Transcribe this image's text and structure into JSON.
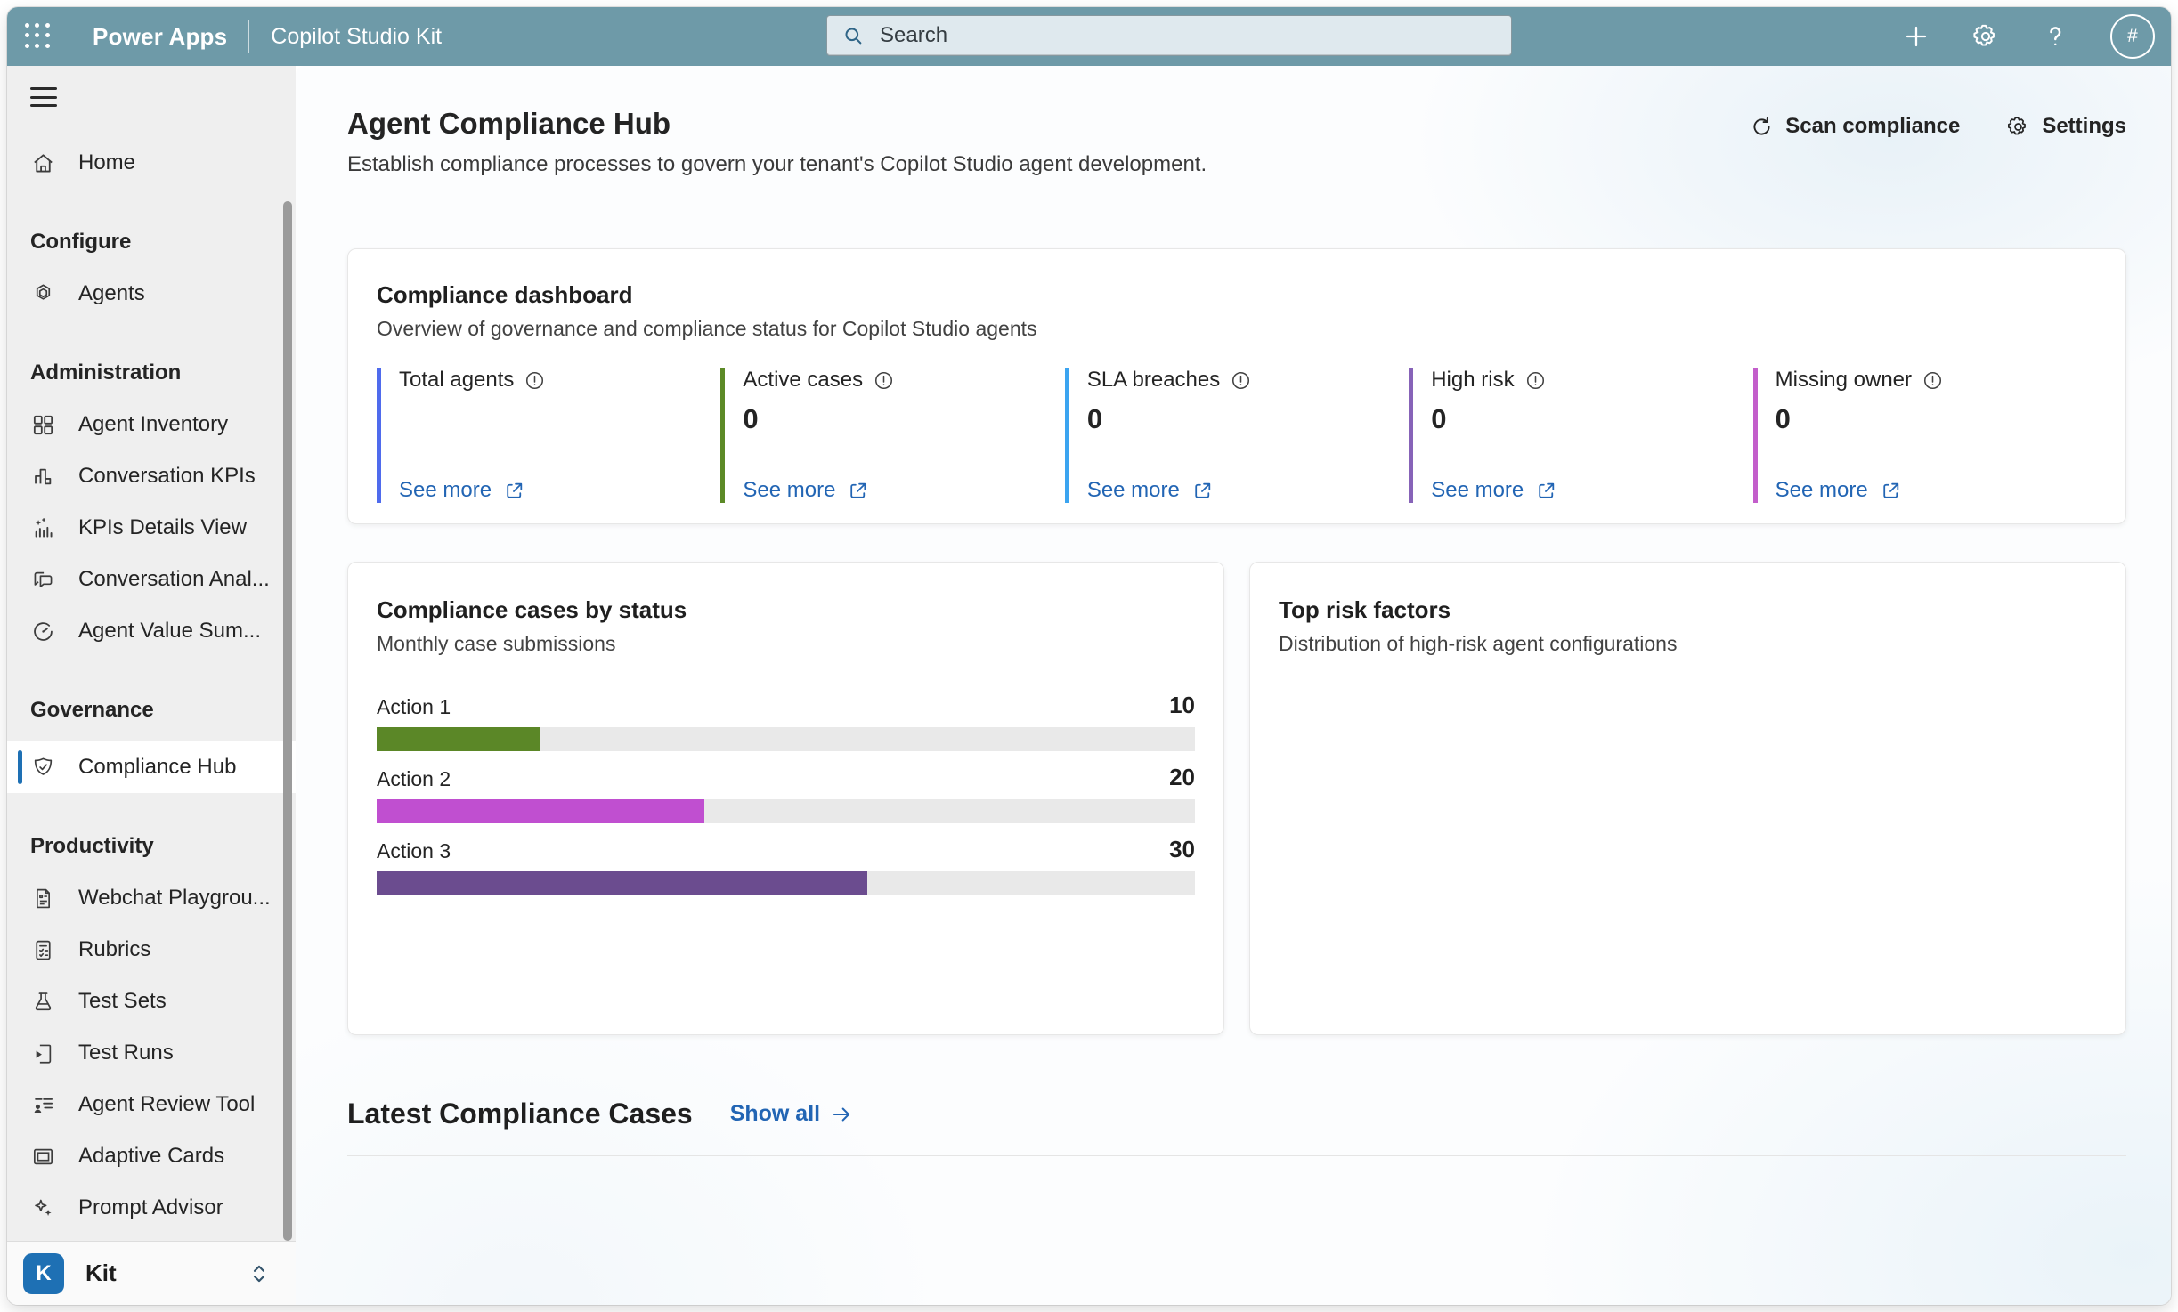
{
  "topbar": {
    "app_name": "Power Apps",
    "env_name": "Copilot Studio Kit",
    "search_placeholder": "Search",
    "avatar_label": "#"
  },
  "sidebar": {
    "home_label": "Home",
    "sections": [
      {
        "title": "Configure",
        "items": [
          {
            "label": "Agents"
          }
        ]
      },
      {
        "title": "Administration",
        "items": [
          {
            "label": "Agent Inventory"
          },
          {
            "label": "Conversation KPIs"
          },
          {
            "label": "KPIs Details View"
          },
          {
            "label": "Conversation Anal..."
          },
          {
            "label": "Agent Value Sum..."
          }
        ]
      },
      {
        "title": "Governance",
        "items": [
          {
            "label": "Compliance Hub",
            "selected": true
          }
        ]
      },
      {
        "title": "Productivity",
        "items": [
          {
            "label": "Webchat Playgrou..."
          },
          {
            "label": "Rubrics"
          },
          {
            "label": "Test Sets"
          },
          {
            "label": "Test Runs"
          },
          {
            "label": "Agent Review Tool"
          },
          {
            "label": "Adaptive Cards"
          },
          {
            "label": "Prompt Advisor"
          }
        ]
      }
    ],
    "environment": {
      "initial": "K",
      "name": "Kit"
    }
  },
  "page": {
    "title": "Agent Compliance Hub",
    "subtitle": "Establish compliance processes to govern your tenant's Copilot Studio agent development.",
    "scan_label": "Scan compliance",
    "settings_label": "Settings"
  },
  "dashboard": {
    "title": "Compliance dashboard",
    "subtitle": "Overview of governance and compliance status for Copilot Studio agents",
    "see_more_label": "See more",
    "metrics": [
      {
        "label": "Total agents",
        "value": "",
        "accent": "#4F6BED"
      },
      {
        "label": "Active cases",
        "value": "0",
        "accent": "#5C8A27"
      },
      {
        "label": "SLA breaches",
        "value": "0",
        "accent": "#3BA4F0"
      },
      {
        "label": "High risk",
        "value": "0",
        "accent": "#8763B8"
      },
      {
        "label": "Missing owner",
        "value": "0",
        "accent": "#C35ECB"
      }
    ]
  },
  "chart_data": [
    {
      "type": "bar",
      "orientation": "horizontal",
      "title": "Compliance cases by status",
      "subtitle": "Monthly case submissions",
      "categories": [
        "Action 1",
        "Action 2",
        "Action 3"
      ],
      "values": [
        10,
        20,
        30
      ],
      "colors": [
        "#5B8727",
        "#C04FD0",
        "#6B4C8F"
      ],
      "xlim": [
        0,
        50
      ],
      "track_color": "#E9E9E9",
      "grid": false,
      "legend": false
    },
    {
      "type": "bar",
      "title": "Top risk factors",
      "subtitle": "Distribution of high-risk agent configurations",
      "categories": [],
      "values": [],
      "note": "empty chart body"
    }
  ],
  "cases_section": {
    "title": "Latest Compliance Cases",
    "show_all_label": "Show all"
  },
  "colors": {
    "topbar_background": "#6E9AA8",
    "sidebar_background": "#EFEFEF",
    "selected_accent": "#1E70B4",
    "link_blue": "#2265B4"
  }
}
